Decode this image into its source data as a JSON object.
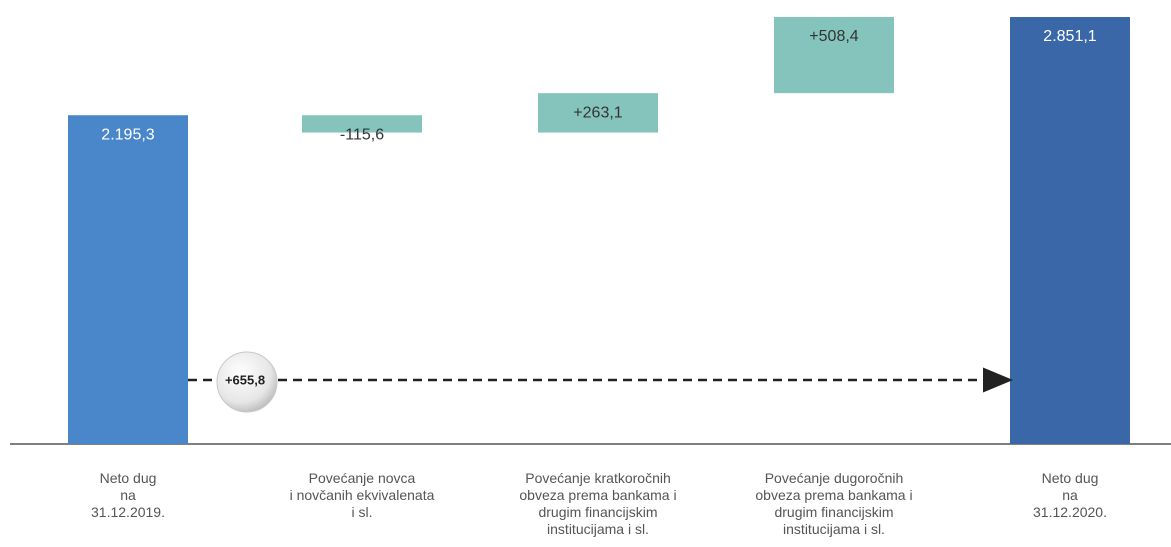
{
  "chart_data": {
    "type": "waterfall",
    "categories": [
      "Neto dug\nna\n31.12.2019.",
      "Povećanje novca\ni novčanih ekvivalenata\ni sl.",
      "Povećanje kratkoročnih\nobveza prema bankama i\ndrugim financijskim\ninstitucijama i sl.",
      "Povećanje dugoročnih\nobveza prema bankama i\ndrugim financijskim\ninstitucijama i sl.",
      "Neto dug\nna\n31.12.2020."
    ],
    "values": [
      2195.3,
      -115.6,
      263.1,
      508.4,
      2851.1
    ],
    "value_labels": [
      "2.195,3",
      "-115,6",
      "+263,1",
      "+508,4",
      "2.851,1"
    ],
    "measure": [
      "absolute",
      "relative",
      "relative",
      "relative",
      "absolute"
    ],
    "colors": [
      "#4a87ca",
      "#85c4bc",
      "#85c4bc",
      "#85c4bc",
      "#3a67a7"
    ],
    "annotation": {
      "value": 655.8,
      "label": "+655,8"
    }
  }
}
